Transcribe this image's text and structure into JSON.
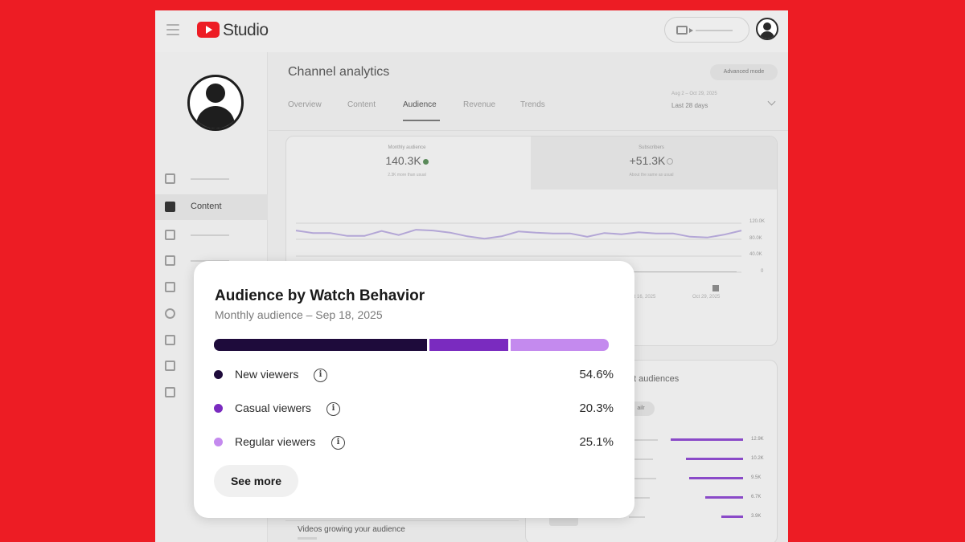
{
  "app": {
    "brand": "Studio"
  },
  "sidebar": {
    "active_item_label": "Content"
  },
  "main": {
    "page_title": "Channel analytics",
    "advanced_mode_label": "Advanced mode",
    "tabs": [
      {
        "label": "Overview"
      },
      {
        "label": "Content"
      },
      {
        "label": "Audience"
      },
      {
        "label": "Revenue"
      },
      {
        "label": "Trends"
      }
    ],
    "date_range": "Aug 2 – Oct 29, 2025",
    "date_label": "Last 28 days"
  },
  "metrics": {
    "monthly_audience": {
      "label": "Monthly audience",
      "value": "140.3K",
      "sub": "2.3K more than usual"
    },
    "subscribers": {
      "label": "Subscribers",
      "value": "+51.3K",
      "sub": "About the same as usual"
    }
  },
  "chart_data": {
    "type": "line",
    "y_ticks": [
      "120.0K",
      "80.0K",
      "40.0K",
      "0"
    ],
    "x_ticks": [
      "Oct 16, 2025",
      "Oct 29, 2025"
    ],
    "ylim": [
      0,
      120000
    ],
    "values": [
      102000,
      96000,
      96000,
      89000,
      89000,
      101000,
      91000,
      104000,
      102000,
      97000,
      88000,
      82000,
      88000,
      100000,
      97000,
      95000,
      95000,
      87000,
      96000,
      93000,
      98000,
      95000,
      95000,
      87000,
      85000,
      92000,
      102000
    ]
  },
  "secondary_card": {
    "title_fragment": "t audiences",
    "chip_label": "ailr",
    "values": [
      "12.9K",
      "10.2K",
      "9.5K",
      "6.7K",
      "3.9K"
    ],
    "bar_fractions": [
      1.0,
      0.79,
      0.74,
      0.52,
      0.3
    ]
  },
  "bottom_card": {
    "title": "Videos growing your audience"
  },
  "popup": {
    "title": "Audience by Watch Behavior",
    "subtitle": "Monthly audience – Sep 18, 2025",
    "info_glyph": "i",
    "segments": [
      {
        "label": "New viewers",
        "percent_text": "54.6%",
        "value": 54.6,
        "color": "#1e0b3b"
      },
      {
        "label": "Casual viewers",
        "percent_text": "20.3%",
        "value": 20.3,
        "color": "#7a2bbf"
      },
      {
        "label": "Regular viewers",
        "percent_text": "25.1%",
        "value": 25.1,
        "color": "#c48aee"
      }
    ],
    "see_more_label": "See more"
  }
}
